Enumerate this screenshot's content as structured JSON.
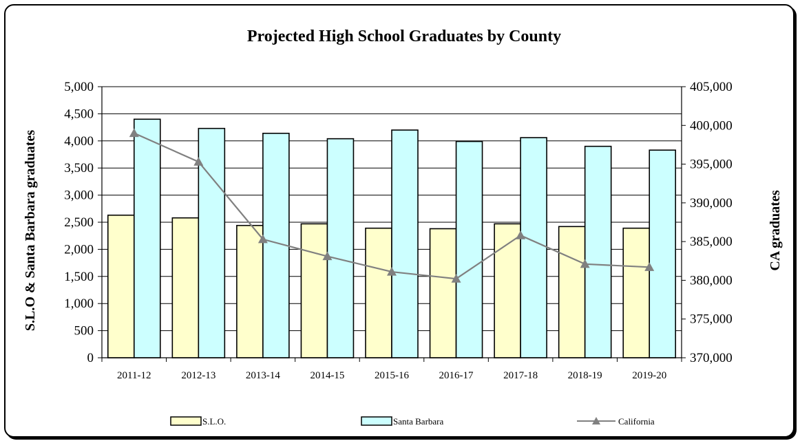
{
  "chart_data": {
    "type": "bar",
    "title": "Projected High School Graduates by County",
    "categories": [
      "2011-12",
      "2012-13",
      "2013-14",
      "2014-15",
      "2015-16",
      "2016-17",
      "2017-18",
      "2018-19",
      "2019-20"
    ],
    "series": [
      {
        "name": "S.L.O.",
        "type": "bar",
        "axis": "left",
        "color": "#ffffcc",
        "values": [
          2630,
          2580,
          2440,
          2470,
          2390,
          2380,
          2470,
          2420,
          2390
        ]
      },
      {
        "name": "Santa Barbara",
        "type": "bar",
        "axis": "left",
        "color": "#ccffff",
        "values": [
          4400,
          4230,
          4140,
          4040,
          4200,
          3990,
          4060,
          3900,
          3830
        ]
      },
      {
        "name": "California",
        "type": "line",
        "axis": "right",
        "color": "#808080",
        "marker": "triangle",
        "values": [
          399000,
          395300,
          385300,
          383100,
          381100,
          380200,
          385800,
          382100,
          381700
        ]
      }
    ],
    "ylabel": "S.L.O & Santa Barbara graduates",
    "y2label": "CA graduates",
    "ylim": [
      0,
      5000
    ],
    "y2lim": [
      370000,
      405000
    ],
    "yticks": [
      "0",
      "500",
      "1,000",
      "1,500",
      "2,000",
      "2,500",
      "3,000",
      "3,500",
      "4,000",
      "4,500",
      "5,000"
    ],
    "y2ticks": [
      "370,000",
      "375,000",
      "380,000",
      "385,000",
      "390,000",
      "395,000",
      "400,000",
      "405,000"
    ],
    "grid": true,
    "legend": "bottom"
  }
}
